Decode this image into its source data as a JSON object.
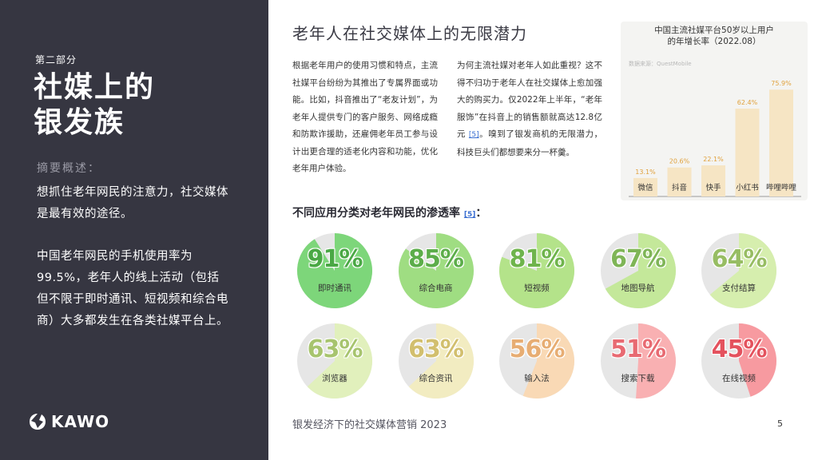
{
  "sidebar": {
    "section_label": "第二部分",
    "title_line1": "社媒上的",
    "title_line2": "银发族",
    "summary_label": "摘要概述：",
    "summary_text_1": "想抓住老年网民的注意力，社交媒体是最有效的途径。",
    "summary_text_2": "中国老年网民的手机使用率为99.5%，老年人的线上活动（包括但不限于即时通讯、短视频和综合电商）大多都发生在各类社媒平台上。",
    "brand": "KAWO",
    "brand_icon": "kawo-logo-icon"
  },
  "main": {
    "heading": "老年人在社交媒体上的无限潜力",
    "paragraph_1": "根据老年用户的使用习惯和特点，主流社媒平台纷纷为其推出了专属界面或功能。比如，抖音推出了“老友计划”，为老年人提供专门的客户服务、网络成瘾和防欺诈援助，还雇佣老年员工参与设计出更合理的适老化内容和功能，优化老年用户体验。",
    "paragraph_2_before": "为何主流社媒对老年人如此重视？这不得不归功于老年人在社交媒体上愈加强大的购买力。仅2022年上半年，“老年服饰”在抖音上的销售额就高达12.8亿元",
    "paragraph_2_ref": "[5]",
    "paragraph_2_after": "。嗅到了银发商机的无限潜力，科技巨头们都想要来分一杯羹。",
    "sub_heading": "不同应用分类对老年网民的渗透率",
    "sub_heading_ref": "[5]",
    "sub_heading_suffix": "："
  },
  "pies": [
    {
      "label": "即时通讯",
      "value": 91,
      "pct_text": "91%",
      "fill": "#7dd67a",
      "text_color": "#4aa845"
    },
    {
      "label": "综合电商",
      "value": 85,
      "pct_text": "85%",
      "fill": "#9fdd82",
      "text_color": "#5cad4a"
    },
    {
      "label": "短视频",
      "value": 81,
      "pct_text": "81%",
      "fill": "#b4e38a",
      "text_color": "#6fb44c"
    },
    {
      "label": "地图导航",
      "value": 67,
      "pct_text": "67%",
      "fill": "#c4e89a",
      "text_color": "#7fb557"
    },
    {
      "label": "支付结算",
      "value": 64,
      "pct_text": "64%",
      "fill": "#d6eeae",
      "text_color": "#97bd63"
    },
    {
      "label": "浏览器",
      "value": 63,
      "pct_text": "63%",
      "fill": "#e1f0bc",
      "text_color": "#a7c46e"
    },
    {
      "label": "综合资讯",
      "value": 63,
      "pct_text": "63%",
      "fill": "#f2ecc1",
      "text_color": "#d2bf6e"
    },
    {
      "label": "输入法",
      "value": 56,
      "pct_text": "56%",
      "fill": "#f9d9b5",
      "text_color": "#e7ad73"
    },
    {
      "label": "搜索下载",
      "value": 51,
      "pct_text": "51%",
      "fill": "#f9b0b2",
      "text_color": "#e86a72"
    },
    {
      "label": "在线视频",
      "value": 45,
      "pct_text": "45%",
      "fill": "#f79aa0",
      "text_color": "#e4525e"
    }
  ],
  "pie_remainder_color": "#e6e6e6",
  "chart_data": {
    "type": "bar",
    "title_line1": "中国主流社媒平台50岁以上用户",
    "title_line2": "的年增长率（2022.08）",
    "watermark": "数据来源：QuestMobile",
    "categories": [
      "微信",
      "抖音",
      "快手",
      "小红书",
      "哔哩哔哩"
    ],
    "values": [
      13.1,
      20.6,
      22.1,
      62.4,
      75.9
    ],
    "value_labels": [
      "13.1%",
      "20.6%",
      "22.1%",
      "62.4%",
      "75.9%"
    ],
    "ylim": [
      0,
      80
    ],
    "bar_color": "#f6e5c4",
    "label_color": "#e0a13c",
    "grid": false
  },
  "footer": {
    "text": "银发经济下的社交媒体营销 2023",
    "page": "5"
  }
}
